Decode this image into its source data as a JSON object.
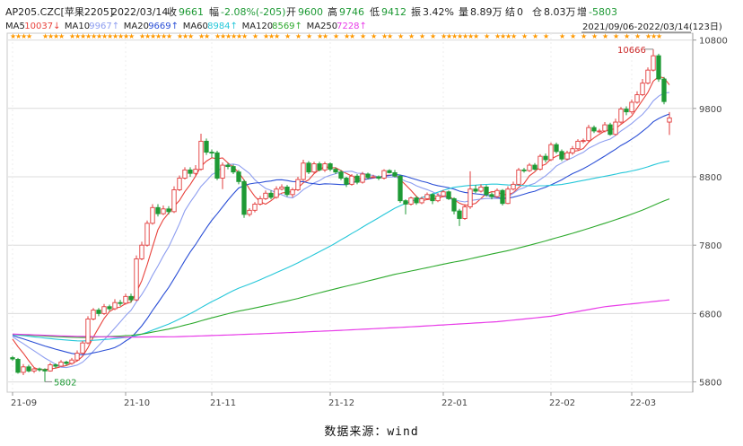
{
  "header": {
    "code": "AP205.CZC[苹果2205]",
    "date": "2022/03/14",
    "close_label": "收",
    "close_value": "9661",
    "change_label": "幅",
    "change_value": "-2.08%(-205)",
    "open_label": "开",
    "open_value": "9600",
    "high_label": "高",
    "high_value": "9746",
    "low_label": "低",
    "low_value": "9412",
    "amplitude_label": "振",
    "amplitude_value": "3.42%",
    "volume_label": "量",
    "volume_value": "8.89万",
    "settle_label": "结",
    "settle_value": "0",
    "oi_label": "仓",
    "oi_value": "8.03万",
    "oi_change_label": "增",
    "oi_change_value": "-5803"
  },
  "ma_legend": [
    {
      "name": "MA5",
      "value": "10037",
      "arrow": "↓",
      "color": "#e8413b"
    },
    {
      "name": "MA10",
      "value": "9967",
      "arrow": "↑",
      "color": "#8e9ef0"
    },
    {
      "name": "MA20",
      "value": "9669",
      "arrow": "↑",
      "color": "#2b4fd6"
    },
    {
      "name": "MA60",
      "value": "8984",
      "arrow": "↑",
      "color": "#25c7d9"
    },
    {
      "name": "MA120",
      "value": "8569",
      "arrow": "↑",
      "color": "#2eaa2e"
    },
    {
      "name": "MA250",
      "value": "7228",
      "arrow": "↑",
      "color": "#e83ce8"
    }
  ],
  "range_label": "2021/09/06-2022/03/14(123日)",
  "caption": "数据来源：wind",
  "colors": {
    "up": "#e23b3b",
    "down": "#1e9a35",
    "grid": "#dcdcdc",
    "star": "#ff9900",
    "high_label": "#cc2b2b",
    "low_label": "#1e9a35"
  },
  "chart_data": {
    "type": "candlestick",
    "x_range": [
      "2021-09-06",
      "2022-03-14"
    ],
    "trading_days": 123,
    "x_ticks": [
      "21-09",
      "21-10",
      "21-11",
      "21-12",
      "22-01",
      "22-02",
      "22-03"
    ],
    "y_ticks": [
      5800,
      6800,
      7800,
      8800,
      9800,
      10800
    ],
    "ylim": [
      5650,
      10900
    ],
    "annotations": {
      "high": {
        "label": "10666",
        "value": 10666
      },
      "low": {
        "label": "5802",
        "value": 5802
      }
    },
    "last_bar": {
      "open": 9600,
      "high": 9746,
      "low": 9412,
      "close": 9661
    },
    "ohlc_approx": [
      [
        6155,
        6135,
        6180,
        6110
      ],
      [
        6130,
        5940,
        6150,
        5920
      ],
      [
        5940,
        6020,
        6060,
        5900
      ],
      [
        6020,
        5960,
        6050,
        5940
      ],
      [
        5960,
        5990,
        6010,
        5930
      ],
      [
        5990,
        5980,
        6010,
        5950
      ],
      [
        5980,
        5960,
        6000,
        5802
      ],
      [
        5960,
        6050,
        6080,
        5950
      ],
      [
        6050,
        6030,
        6070,
        6000
      ],
      [
        6030,
        6090,
        6120,
        6020
      ],
      [
        6090,
        6070,
        6110,
        6040
      ],
      [
        6070,
        6120,
        6150,
        6050
      ],
      [
        6120,
        6220,
        6260,
        6110
      ],
      [
        6220,
        6370,
        6400,
        6200
      ],
      [
        6370,
        6720,
        6760,
        6350
      ],
      [
        6720,
        6850,
        6880,
        6700
      ],
      [
        6850,
        6800,
        6880,
        6760
      ],
      [
        6800,
        6900,
        6940,
        6780
      ],
      [
        6900,
        6870,
        6930,
        6840
      ],
      [
        6870,
        6960,
        7010,
        6850
      ],
      [
        6960,
        6950,
        7000,
        6910
      ],
      [
        6950,
        7050,
        7090,
        6930
      ],
      [
        7050,
        7000,
        7090,
        6960
      ],
      [
        7000,
        7600,
        7650,
        6980
      ],
      [
        7600,
        7800,
        7850,
        7580
      ],
      [
        7800,
        8120,
        8160,
        7780
      ],
      [
        8120,
        8350,
        8400,
        8100
      ],
      [
        8350,
        8260,
        8400,
        8220
      ],
      [
        8260,
        8330,
        8380,
        8240
      ],
      [
        8330,
        8290,
        8370,
        8250
      ],
      [
        8290,
        8610,
        8660,
        8270
      ],
      [
        8610,
        8780,
        8820,
        8590
      ],
      [
        8780,
        8900,
        8940,
        8760
      ],
      [
        8900,
        8850,
        8940,
        8800
      ],
      [
        8850,
        8910,
        8970,
        8820
      ],
      [
        8910,
        9320,
        9430,
        8890
      ],
      [
        9320,
        9160,
        9360,
        9120
      ],
      [
        9160,
        9150,
        9200,
        9080
      ],
      [
        9150,
        8780,
        9180,
        8750
      ],
      [
        8780,
        8970,
        9010,
        8620
      ],
      [
        8970,
        8950,
        9000,
        8910
      ],
      [
        8950,
        8870,
        8980,
        8840
      ],
      [
        8870,
        8730,
        8900,
        8690
      ],
      [
        8730,
        8250,
        8760,
        8200
      ],
      [
        8250,
        8310,
        8340,
        8220
      ],
      [
        8310,
        8400,
        8430,
        8280
      ],
      [
        8400,
        8480,
        8520,
        8380
      ],
      [
        8480,
        8560,
        8600,
        8460
      ],
      [
        8560,
        8500,
        8600,
        8470
      ],
      [
        8500,
        8620,
        8660,
        8480
      ],
      [
        8620,
        8650,
        8690,
        8600
      ],
      [
        8650,
        8540,
        8680,
        8510
      ],
      [
        8540,
        8610,
        8640,
        8500
      ],
      [
        8610,
        8760,
        8800,
        8590
      ],
      [
        8760,
        9000,
        9050,
        8740
      ],
      [
        9000,
        8870,
        9030,
        8840
      ],
      [
        8870,
        8990,
        9020,
        8850
      ],
      [
        8990,
        8900,
        9020,
        8880
      ],
      [
        8900,
        8990,
        9020,
        8870
      ],
      [
        8990,
        8910,
        9010,
        8880
      ],
      [
        8910,
        8870,
        8940,
        8840
      ],
      [
        8870,
        8780,
        8900,
        8750
      ],
      [
        8780,
        8690,
        8800,
        8650
      ],
      [
        8690,
        8810,
        8840,
        8670
      ],
      [
        8810,
        8720,
        8840,
        8690
      ],
      [
        8720,
        8840,
        8870,
        8700
      ],
      [
        8840,
        8790,
        8860,
        8760
      ],
      [
        8790,
        8800,
        8830,
        8780
      ],
      [
        8800,
        8780,
        8820,
        8750
      ],
      [
        8780,
        8890,
        8910,
        8760
      ],
      [
        8890,
        8860,
        8910,
        8850
      ],
      [
        8860,
        8810,
        8900,
        8790
      ],
      [
        8810,
        8450,
        8830,
        8420
      ],
      [
        8450,
        8400,
        8470,
        8250
      ],
      [
        8400,
        8490,
        8510,
        8380
      ],
      [
        8490,
        8420,
        8520,
        8390
      ],
      [
        8420,
        8480,
        8510,
        8400
      ],
      [
        8480,
        8540,
        8570,
        8460
      ],
      [
        8540,
        8450,
        8560,
        8400
      ],
      [
        8450,
        8520,
        8560,
        8430
      ],
      [
        8520,
        8580,
        8610,
        8500
      ],
      [
        8580,
        8480,
        8600,
        8460
      ],
      [
        8480,
        8300,
        8500,
        8250
      ],
      [
        8300,
        8190,
        8330,
        8080
      ],
      [
        8190,
        8360,
        8400,
        8170
      ],
      [
        8360,
        8620,
        8880,
        8330
      ],
      [
        8620,
        8590,
        8680,
        8560
      ],
      [
        8590,
        8650,
        8690,
        8570
      ],
      [
        8650,
        8540,
        8680,
        8510
      ],
      [
        8540,
        8510,
        8570,
        8470
      ],
      [
        8510,
        8600,
        8630,
        8490
      ],
      [
        8600,
        8410,
        8620,
        8380
      ],
      [
        8410,
        8620,
        8660,
        8400
      ],
      [
        8620,
        8690,
        8730,
        8600
      ],
      [
        8690,
        8900,
        8930,
        8670
      ],
      [
        8900,
        8890,
        8930,
        8860
      ],
      [
        8890,
        8970,
        9000,
        8870
      ],
      [
        8970,
        8910,
        9000,
        8890
      ],
      [
        8910,
        9100,
        9130,
        8890
      ],
      [
        9100,
        9050,
        9140,
        9010
      ],
      [
        9050,
        9270,
        9300,
        9030
      ],
      [
        9270,
        9170,
        9300,
        9140
      ],
      [
        9170,
        9060,
        9200,
        9030
      ],
      [
        9060,
        9150,
        9180,
        9040
      ],
      [
        9150,
        9210,
        9250,
        9120
      ],
      [
        9210,
        9320,
        9350,
        9190
      ],
      [
        9320,
        9330,
        9360,
        9290
      ],
      [
        9330,
        9520,
        9560,
        9310
      ],
      [
        9520,
        9470,
        9550,
        9440
      ],
      [
        9470,
        9470,
        9500,
        9440
      ],
      [
        9470,
        9560,
        9600,
        9450
      ],
      [
        9560,
        9420,
        9590,
        9400
      ],
      [
        9420,
        9600,
        9650,
        9400
      ],
      [
        9600,
        9790,
        9820,
        9580
      ],
      [
        9790,
        9750,
        9830,
        9700
      ],
      [
        9750,
        9890,
        9930,
        9720
      ],
      [
        9890,
        10000,
        10050,
        9870
      ],
      [
        10000,
        10170,
        10230,
        9980
      ],
      [
        10170,
        10360,
        10400,
        10150
      ],
      [
        10360,
        10570,
        10666,
        10340
      ],
      [
        10570,
        10230,
        10600,
        10190
      ],
      [
        10230,
        9900,
        10260,
        9860
      ],
      [
        9600,
        9661,
        9746,
        9412
      ]
    ],
    "series": [
      {
        "name": "MA5",
        "last": 10037,
        "color": "#e8413b"
      },
      {
        "name": "MA10",
        "last": 9967,
        "color": "#8e9ef0"
      },
      {
        "name": "MA20",
        "last": 9669,
        "color": "#2b4fd6"
      },
      {
        "name": "MA60",
        "last": 8984,
        "color": "#25c7d9"
      },
      {
        "name": "MA120",
        "last": 8569,
        "color": "#2eaa2e"
      },
      {
        "name": "MA250",
        "last": 7228,
        "color": "#e83ce8"
      }
    ],
    "ma250_approx": [
      [
        0,
        6500
      ],
      [
        10,
        6470
      ],
      [
        20,
        6455
      ],
      [
        30,
        6460
      ],
      [
        45,
        6500
      ],
      [
        60,
        6550
      ],
      [
        75,
        6610
      ],
      [
        90,
        6680
      ],
      [
        100,
        6760
      ],
      [
        110,
        6900
      ],
      [
        122,
        7000
      ]
    ],
    "grid": true
  }
}
